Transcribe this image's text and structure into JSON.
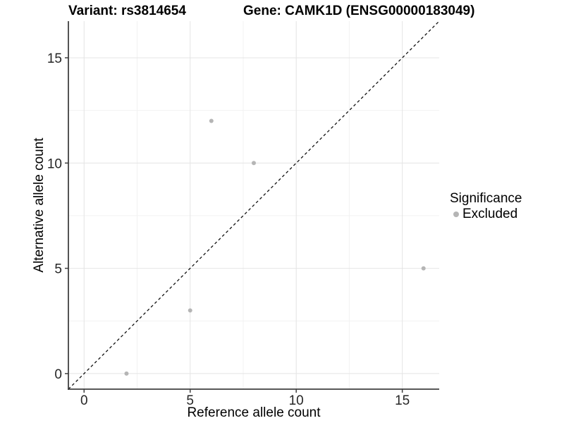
{
  "header": {
    "variant_title": "Variant: rs3814654",
    "gene_title": "Gene: CAMK1D (ENSG00000183049)"
  },
  "legend": {
    "title": "Significance",
    "items": [
      {
        "label": "Excluded",
        "color": "#b5b5b5"
      }
    ]
  },
  "chart_data": {
    "type": "scatter",
    "title": "Variant: rs3814654   Gene: CAMK1D (ENSG00000183049)",
    "xlabel": "Reference allele count",
    "ylabel": "Alternative allele count",
    "xlim": [
      -0.74,
      16.74
    ],
    "ylim": [
      -0.74,
      16.74
    ],
    "xticks": [
      0,
      5,
      10,
      15
    ],
    "yticks": [
      0,
      5,
      10,
      15
    ],
    "minor_ticks": [
      2.5,
      7.5,
      12.5
    ],
    "grid": true,
    "legend_position": "right",
    "series": [
      {
        "name": "Excluded",
        "color": "#b5b5b5",
        "points": [
          [
            2,
            0
          ],
          [
            5,
            3
          ],
          [
            6,
            12
          ],
          [
            8,
            10
          ],
          [
            16,
            5
          ]
        ]
      }
    ],
    "reference_line": {
      "slope": 1,
      "intercept": 0,
      "style": "dashed",
      "color": "#111111"
    },
    "colors": {
      "grid_major": "#e4e4e4",
      "grid_minor": "#f2f2f2",
      "axis": "#404040",
      "tick_text": "#262626"
    }
  }
}
